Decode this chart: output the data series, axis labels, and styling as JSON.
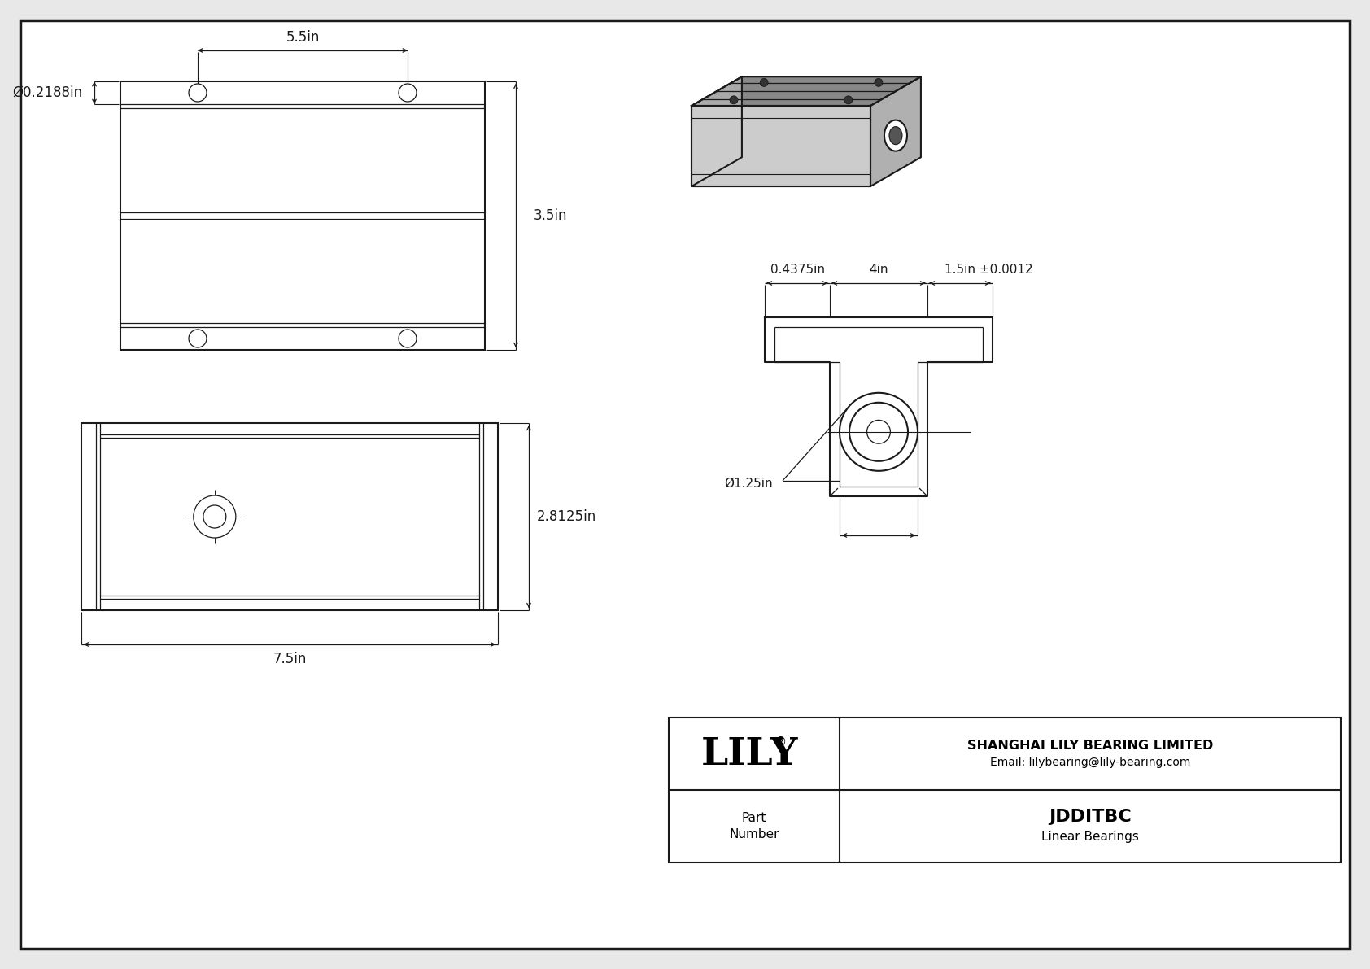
{
  "bg_color": "#e8e8e8",
  "drawing_bg": "#ffffff",
  "line_color": "#1a1a1a",
  "title": "JDDITBC",
  "subtitle": "Linear Bearings",
  "company": "SHANGHAI LILY BEARING LIMITED",
  "email": "Email: lilybearing@lily-bearing.com",
  "part_label": "Part\nNumber",
  "dim_55": "5.5in",
  "dim_35": "3.5in",
  "dim_d0218": "Ø0.2188in",
  "dim_75": "7.5in",
  "dim_28125": "2.8125in",
  "dim_04375": "0.4375in",
  "dim_4": "4in",
  "dim_15": "1.5in ±0.0012",
  "dim_d125": "Ø1.25in",
  "iso_gray_top": "#888888",
  "iso_gray_left": "#aaaaaa",
  "iso_gray_right": "#cccccc"
}
